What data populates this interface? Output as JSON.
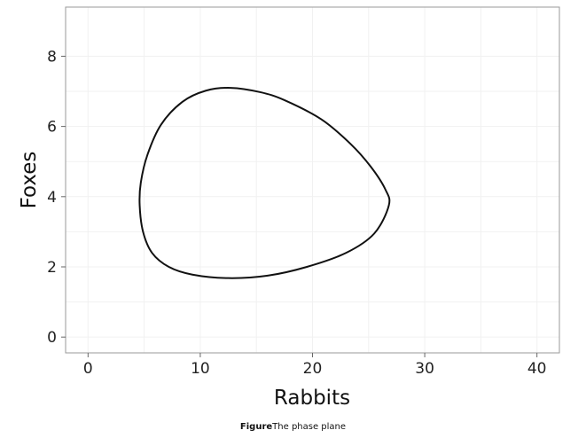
{
  "caption": {
    "lead": "Figure",
    "text": "The phase plane"
  },
  "chart_data": {
    "type": "line",
    "xlabel": "Rabbits",
    "ylabel": "Foxes",
    "xlim": [
      -2,
      42
    ],
    "ylim": [
      -0.45,
      9.4
    ],
    "xticks": [
      0,
      10,
      20,
      30,
      40
    ],
    "yticks": [
      0,
      2,
      4,
      6,
      8
    ],
    "grid": true,
    "colors": {
      "line": "#111111",
      "panel_border": "#9a9a9a",
      "grid": "#f1f1f1"
    },
    "series": [
      {
        "x": [
          26.8,
          26.5,
          25.2,
          23.4,
          20.8,
          17.5,
          15.3,
          12.7,
          10.5,
          8.4,
          6.5,
          5.3,
          4.7,
          4.6,
          4.9,
          5.7,
          7.2,
          9.3,
          12.5,
          16.0,
          19.5,
          23.0,
          25.5,
          26.8
        ],
        "y": [
          3.75,
          4.2,
          4.85,
          5.5,
          6.2,
          6.75,
          6.98,
          7.1,
          7.02,
          6.7,
          6.05,
          5.2,
          4.4,
          3.75,
          3.0,
          2.4,
          2.0,
          1.78,
          1.68,
          1.75,
          2.0,
          2.4,
          2.95,
          3.75
        ]
      }
    ]
  }
}
